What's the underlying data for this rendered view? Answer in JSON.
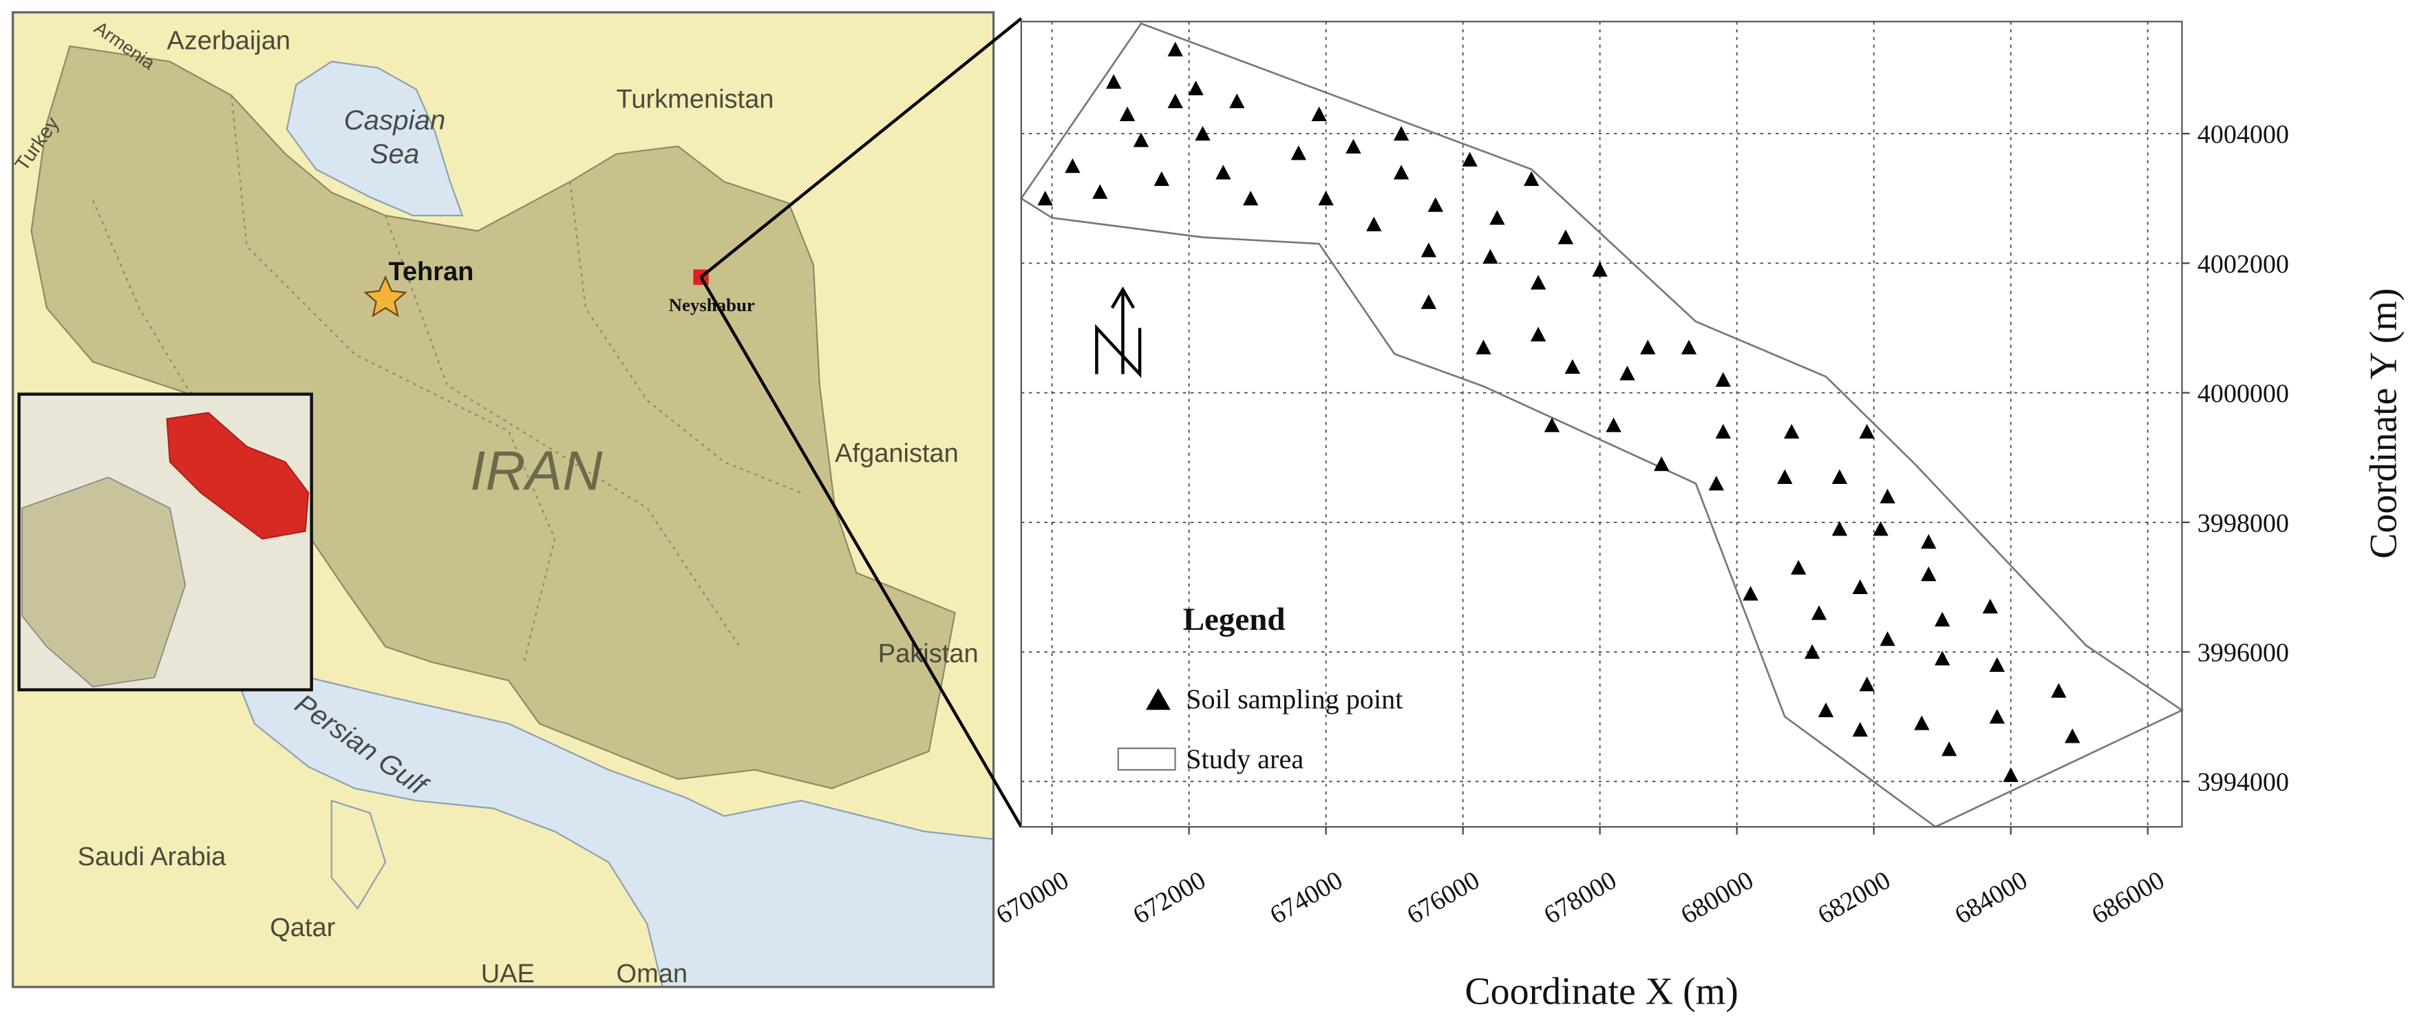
{
  "map": {
    "azerbaijan": "Azerbaijan",
    "armenia": "Armenia",
    "turkey": "Turkey",
    "caspian": [
      "Caspian",
      "Sea"
    ],
    "turkmenistan": "Turkmenistan",
    "tehran": "Tehran",
    "neyshabur": "Neyshabur",
    "iran": "IRAN",
    "afganistan": "Afganistan",
    "pakistan": "Pakistan",
    "persian_gulf": "Persian Gulf",
    "saudi_arabia": "Saudi Arabia",
    "qatar": "Qatar",
    "uae": "UAE",
    "oman": "Oman"
  },
  "chart_data": {
    "type": "scatter",
    "x_label": "Coordinate X (m)",
    "y_label": "Coordinate Y (m)",
    "xlim": [
      669550,
      686500
    ],
    "ylim": [
      3993300,
      4005730
    ],
    "xticks": [
      670000,
      672000,
      674000,
      676000,
      678000,
      680000,
      682000,
      684000,
      686000
    ],
    "yticks": [
      3994000,
      3996000,
      3998000,
      4000000,
      4002000,
      4004000
    ],
    "grid": true,
    "legend": {
      "title": "Legend"
    },
    "series": [
      {
        "name": "Soil sampling point",
        "color": "#000000",
        "x": [
          669900,
          670300,
          670700,
          670900,
          671100,
          671300,
          671600,
          671800,
          671800,
          672100,
          672200,
          672500,
          672700,
          672900,
          673600,
          673900,
          674000,
          674400,
          674700,
          675100,
          675100,
          675600,
          675500,
          675500,
          676100,
          676300,
          676400,
          676500,
          677000,
          677100,
          677100,
          677500,
          677600,
          678000,
          677300,
          678200,
          678400,
          678700,
          678900,
          679300,
          679800,
          679800,
          679700,
          680200,
          680800,
          680700,
          680900,
          681200,
          681100,
          681300,
          681500,
          681500,
          681900,
          681800,
          681900,
          681800,
          682100,
          682200,
          682200,
          682800,
          682800,
          683000,
          683000,
          682700,
          683100,
          683700,
          683800,
          683800,
          684700,
          684900,
          684000
        ],
        "values": [
          4003000,
          4003500,
          4003100,
          4004800,
          4004300,
          4003900,
          4003300,
          4005300,
          4004500,
          4004700,
          4004000,
          4003400,
          4004500,
          4003000,
          4003700,
          4004300,
          4003000,
          4003800,
          4002600,
          4004000,
          4003400,
          4002900,
          4002200,
          4001400,
          4003600,
          4000700,
          4002100,
          4002700,
          4003300,
          4001700,
          4000900,
          4002400,
          4000400,
          4001900,
          3999500,
          3999500,
          4000300,
          4000700,
          3998900,
          4000700,
          4000200,
          3999400,
          3998600,
          3996900,
          3999400,
          3998700,
          3997300,
          3996600,
          3996000,
          3995100,
          3997900,
          3998700,
          3999400,
          3997000,
          3995500,
          3994800,
          3997900,
          3998400,
          3996200,
          3997700,
          3997200,
          3996500,
          3995900,
          3994900,
          3994500,
          3996700,
          3995800,
          3995000,
          3995400,
          3994700,
          3994100
        ]
      }
    ],
    "study_area": {
      "name": "Study area",
      "color": "#777777",
      "x": [
        669550,
        671300,
        677000,
        679400,
        681300,
        682600,
        685100,
        686500,
        682900,
        680700,
        679400,
        676300,
        675000,
        673900,
        672200,
        670000
      ],
      "y": [
        4003000,
        4005700,
        4003450,
        4001100,
        4000250,
        3998900,
        3996100,
        3995100,
        3993300,
        3995000,
        3998600,
        4000100,
        4000600,
        4002300,
        4002400,
        4002700
      ]
    }
  }
}
